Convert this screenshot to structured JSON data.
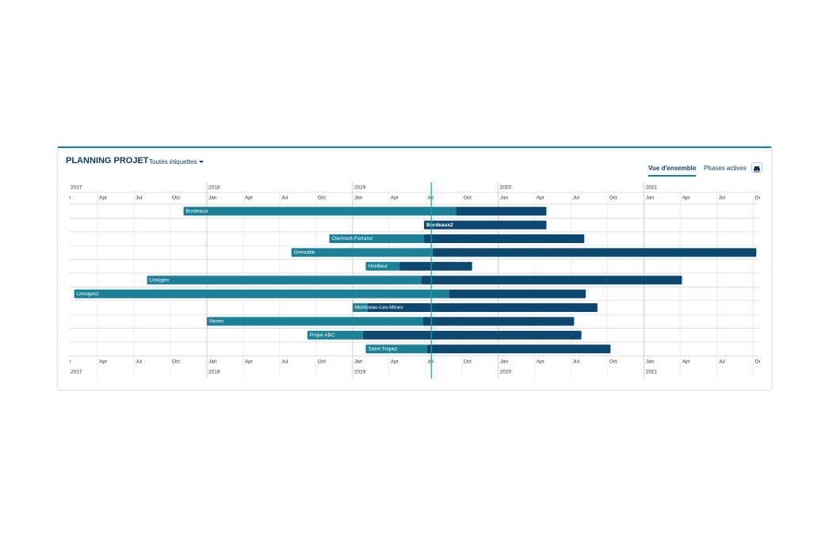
{
  "header": {
    "title": "PLANNING PROJET",
    "filter": "Toutes étiquettes"
  },
  "tabs": [
    "Vue d'ensemble",
    "Phases actives"
  ],
  "timeline": {
    "xlim": [
      2017.054,
      2021.79
    ],
    "today": 2019.54,
    "year_ticks": [
      2017,
      2018,
      2019,
      2020,
      2021
    ],
    "month_ticks": [
      {
        "value": 2017,
        "label": "Jan"
      },
      {
        "value": 2017.25,
        "label": "Apr"
      },
      {
        "value": 2017.5,
        "label": "Jul"
      },
      {
        "value": 2017.75,
        "label": "Oct"
      },
      {
        "value": 2018,
        "label": "Jan"
      },
      {
        "value": 2018.25,
        "label": "Apr"
      },
      {
        "value": 2018.5,
        "label": "Jul"
      },
      {
        "value": 2018.75,
        "label": "Oct"
      },
      {
        "value": 2019,
        "label": "Jan"
      },
      {
        "value": 2019.25,
        "label": "Apr"
      },
      {
        "value": 2019.5,
        "label": "Jul"
      },
      {
        "value": 2019.75,
        "label": "Oct"
      },
      {
        "value": 2020,
        "label": "Jan"
      },
      {
        "value": 2020.25,
        "label": "Apr"
      },
      {
        "value": 2020.5,
        "label": "Jul"
      },
      {
        "value": 2020.75,
        "label": "Oct"
      },
      {
        "value": 2021,
        "label": "Jan"
      },
      {
        "value": 2021.25,
        "label": "Apr"
      },
      {
        "value": 2021.5,
        "label": "Jul"
      },
      {
        "value": 2021.75,
        "label": "Oct"
      }
    ],
    "colors": {
      "done": "#1b8197",
      "todo": "#0d4870"
    },
    "tasks": [
      {
        "label": "Bordeaux",
        "start": 2017.84,
        "progress": 2019.71,
        "end": 2020.33
      },
      {
        "label": "Bordeaux2",
        "start": 2019.49,
        "progress": 2019.49,
        "end": 2020.33
      },
      {
        "label": "Clermont-Ferrand",
        "start": 2018.84,
        "progress": 2019.49,
        "end": 2020.59
      },
      {
        "label": "Grenoble",
        "start": 2018.58,
        "progress": 2019.55,
        "end": 2021.77
      },
      {
        "label": "Honfleur",
        "start": 2019.09,
        "progress": 2019.32,
        "end": 2019.82
      },
      {
        "label": "Limoges",
        "start": 2017.59,
        "progress": 2019.47,
        "end": 2021.26
      },
      {
        "label": "Limoges2",
        "start": 2017.09,
        "progress": 2019.66,
        "end": 2020.6
      },
      {
        "label": "Montceau-Les-Mines",
        "start": 2019.0,
        "progress": 2019.1,
        "end": 2020.68
      },
      {
        "label": "Nimes",
        "start": 2018.0,
        "progress": 2019.48,
        "end": 2020.52
      },
      {
        "label": "Projet ABC",
        "start": 2018.69,
        "progress": 2019.07,
        "end": 2020.57
      },
      {
        "label": "Saint-Tropez",
        "start": 2019.09,
        "progress": 2019.51,
        "end": 2020.77
      }
    ]
  }
}
